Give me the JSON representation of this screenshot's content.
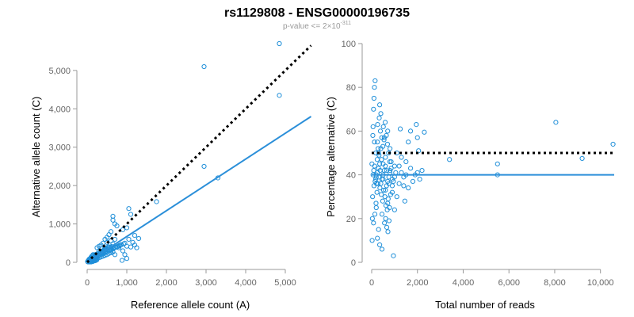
{
  "title": "rs1129808 - ENSG00000196735",
  "subtitle_prefix": "p-value <= 2",
  "subtitle_times": "×",
  "subtitle_base": "10",
  "subtitle_exp": "-311",
  "colors": {
    "points": "#1f8fd9",
    "fit": "#2b8fd9",
    "reference": "#000000"
  },
  "chart_data": [
    {
      "type": "scatter",
      "xlabel": "Reference allele count (A)",
      "ylabel": "Alternative allele count (C)",
      "xlim": [
        0,
        5600
      ],
      "ylim": [
        0,
        5700
      ],
      "xticks": [
        0,
        1000,
        2000,
        3000,
        4000,
        5000
      ],
      "xtick_labels": [
        "0",
        "1,000",
        "2,000",
        "3,000",
        "4,000",
        "5,000"
      ],
      "yticks": [
        0,
        1000,
        2000,
        3000,
        4000,
        5000
      ],
      "ytick_labels": [
        "0",
        "1,000",
        "2,000",
        "3,000",
        "4,000",
        "5,000"
      ],
      "fit_line": {
        "x0": 0,
        "y0": 0,
        "x1": 5650,
        "y1": 3800,
        "style": "solid"
      },
      "reference_line": {
        "x0": 0,
        "y0": 0,
        "x1": 5650,
        "y1": 5650,
        "style": "dotted"
      },
      "points": [
        [
          4850,
          5700
        ],
        [
          2950,
          5100
        ],
        [
          4850,
          4350
        ],
        [
          2950,
          2500
        ],
        [
          3300,
          2200
        ],
        [
          1050,
          1400
        ],
        [
          1100,
          1250
        ],
        [
          1750,
          1580
        ],
        [
          650,
          1200
        ],
        [
          650,
          1100
        ],
        [
          700,
          1000
        ],
        [
          750,
          950
        ],
        [
          600,
          800
        ],
        [
          550,
          720
        ],
        [
          900,
          850
        ],
        [
          1000,
          900
        ],
        [
          1200,
          700
        ],
        [
          1300,
          620
        ],
        [
          1150,
          520
        ],
        [
          1050,
          600
        ],
        [
          950,
          500
        ],
        [
          850,
          450
        ],
        [
          800,
          380
        ],
        [
          1000,
          420
        ],
        [
          900,
          300
        ],
        [
          700,
          600
        ],
        [
          500,
          650
        ],
        [
          450,
          600
        ],
        [
          400,
          500
        ],
        [
          350,
          450
        ],
        [
          300,
          420
        ],
        [
          250,
          380
        ],
        [
          500,
          520
        ],
        [
          600,
          560
        ],
        [
          650,
          480
        ],
        [
          1100,
          400
        ],
        [
          1200,
          450
        ],
        [
          1250,
          380
        ],
        [
          950,
          200
        ],
        [
          1000,
          100
        ],
        [
          880,
          50
        ],
        [
          700,
          200
        ],
        [
          600,
          300
        ],
        [
          550,
          400
        ],
        [
          450,
          380
        ],
        [
          400,
          300
        ],
        [
          350,
          250
        ],
        [
          300,
          300
        ],
        [
          250,
          220
        ],
        [
          200,
          200
        ],
        [
          150,
          180
        ],
        [
          120,
          120
        ],
        [
          100,
          100
        ],
        [
          80,
          60
        ],
        [
          60,
          40
        ],
        [
          50,
          80
        ],
        [
          40,
          30
        ],
        [
          30,
          50
        ],
        [
          20,
          10
        ],
        [
          10,
          20
        ],
        [
          200,
          100
        ],
        [
          250,
          150
        ],
        [
          300,
          180
        ],
        [
          350,
          200
        ],
        [
          400,
          220
        ],
        [
          450,
          250
        ],
        [
          500,
          280
        ],
        [
          550,
          300
        ],
        [
          600,
          330
        ],
        [
          650,
          350
        ],
        [
          700,
          380
        ],
        [
          750,
          400
        ],
        [
          800,
          420
        ],
        [
          200,
          60
        ],
        [
          150,
          40
        ],
        [
          100,
          30
        ],
        [
          250,
          90
        ],
        [
          300,
          120
        ],
        [
          350,
          140
        ],
        [
          400,
          160
        ],
        [
          450,
          180
        ],
        [
          500,
          200
        ],
        [
          550,
          230
        ],
        [
          600,
          250
        ],
        [
          650,
          270
        ],
        [
          180,
          140
        ],
        [
          220,
          160
        ],
        [
          260,
          190
        ],
        [
          320,
          230
        ],
        [
          380,
          270
        ],
        [
          420,
          310
        ],
        [
          480,
          330
        ],
        [
          520,
          360
        ],
        [
          580,
          390
        ],
        [
          620,
          410
        ],
        [
          140,
          90
        ],
        [
          170,
          110
        ],
        [
          210,
          130
        ],
        [
          240,
          170
        ],
        [
          270,
          200
        ],
        [
          330,
          260
        ],
        [
          370,
          290
        ],
        [
          430,
          340
        ],
        [
          470,
          360
        ],
        [
          530,
          400
        ],
        [
          90,
          50
        ],
        [
          110,
          70
        ],
        [
          130,
          80
        ],
        [
          160,
          100
        ],
        [
          190,
          120
        ],
        [
          230,
          140
        ],
        [
          280,
          160
        ],
        [
          310,
          190
        ],
        [
          360,
          210
        ],
        [
          410,
          240
        ],
        [
          460,
          260
        ],
        [
          510,
          290
        ],
        [
          560,
          320
        ],
        [
          610,
          340
        ],
        [
          660,
          370
        ],
        [
          710,
          390
        ],
        [
          760,
          410
        ],
        [
          810,
          440
        ],
        [
          860,
          460
        ],
        [
          920,
          480
        ],
        [
          70,
          90
        ],
        [
          90,
          120
        ],
        [
          110,
          150
        ],
        [
          130,
          170
        ],
        [
          150,
          200
        ],
        [
          60,
          10
        ],
        [
          80,
          20
        ],
        [
          100,
          10
        ],
        [
          120,
          30
        ],
        [
          140,
          20
        ],
        [
          160,
          50
        ],
        [
          180,
          70
        ],
        [
          200,
          40
        ],
        [
          220,
          80
        ],
        [
          240,
          60
        ]
      ]
    },
    {
      "type": "scatter",
      "xlabel": "Total number of reads",
      "ylabel": "Percentage alternative (C)",
      "xlim": [
        0,
        10600
      ],
      "ylim": [
        0,
        100
      ],
      "xticks": [
        0,
        2000,
        4000,
        6000,
        8000,
        10000
      ],
      "xtick_labels": [
        "0",
        "2,000",
        "4,000",
        "6,000",
        "8,000",
        "10,000"
      ],
      "yticks": [
        0,
        20,
        40,
        60,
        80,
        100
      ],
      "ytick_labels": [
        "0",
        "20",
        "40",
        "60",
        "80",
        "100"
      ],
      "fit_line": {
        "x0": 0,
        "y0": 40,
        "x1": 10600,
        "y1": 40,
        "style": "solid"
      },
      "reference_line": {
        "x0": 0,
        "y0": 50,
        "x1": 10600,
        "y1": 50,
        "style": "dotted"
      },
      "points": [
        [
          10550,
          54
        ],
        [
          8050,
          64
        ],
        [
          9200,
          47.5
        ],
        [
          5500,
          40
        ],
        [
          5500,
          45
        ],
        [
          3400,
          47
        ],
        [
          2300,
          59.5
        ],
        [
          2050,
          51
        ],
        [
          1950,
          63
        ],
        [
          2000,
          57
        ],
        [
          1700,
          60
        ],
        [
          1600,
          55
        ],
        [
          1500,
          40
        ],
        [
          1450,
          28
        ],
        [
          1400,
          35
        ],
        [
          1300,
          48
        ],
        [
          1200,
          44
        ],
        [
          1100,
          30
        ],
        [
          1000,
          24
        ],
        [
          950,
          3
        ],
        [
          900,
          38
        ],
        [
          850,
          46
        ],
        [
          800,
          52
        ],
        [
          750,
          36
        ],
        [
          700,
          60
        ],
        [
          650,
          42
        ],
        [
          600,
          33
        ],
        [
          550,
          57
        ],
        [
          500,
          45
        ],
        [
          450,
          22
        ],
        [
          400,
          68
        ],
        [
          350,
          72
        ],
        [
          300,
          15
        ],
        [
          250,
          55
        ],
        [
          200,
          40
        ],
        [
          150,
          83
        ],
        [
          120,
          80
        ],
        [
          100,
          75
        ],
        [
          80,
          70
        ],
        [
          60,
          62
        ],
        [
          50,
          58
        ],
        [
          40,
          30
        ],
        [
          30,
          20
        ],
        [
          20,
          10
        ],
        [
          10,
          45
        ],
        [
          250,
          11
        ],
        [
          350,
          8
        ],
        [
          450,
          6
        ],
        [
          200,
          25
        ],
        [
          300,
          50
        ],
        [
          400,
          52
        ],
        [
          500,
          38
        ],
        [
          600,
          48
        ],
        [
          700,
          27
        ],
        [
          800,
          42
        ],
        [
          900,
          32
        ],
        [
          1000,
          44
        ],
        [
          1100,
          50
        ],
        [
          1200,
          36
        ],
        [
          1300,
          41
        ],
        [
          1400,
          39
        ],
        [
          1500,
          46
        ],
        [
          1600,
          34
        ],
        [
          1700,
          43
        ],
        [
          1800,
          37
        ],
        [
          1900,
          40
        ],
        [
          2000,
          41
        ],
        [
          2100,
          38
        ],
        [
          2200,
          42
        ],
        [
          1250,
          61
        ],
        [
          100,
          35
        ],
        [
          150,
          37
        ],
        [
          200,
          39
        ],
        [
          250,
          41
        ],
        [
          300,
          43
        ],
        [
          350,
          45
        ],
        [
          400,
          36
        ],
        [
          450,
          38
        ],
        [
          500,
          40
        ],
        [
          550,
          42
        ],
        [
          600,
          44
        ],
        [
          650,
          35
        ],
        [
          700,
          37
        ],
        [
          750,
          39
        ],
        [
          800,
          41
        ],
        [
          850,
          43
        ],
        [
          900,
          35
        ],
        [
          950,
          37
        ],
        [
          1000,
          39
        ],
        [
          1050,
          41
        ],
        [
          120,
          55
        ],
        [
          180,
          50
        ],
        [
          240,
          47
        ],
        [
          280,
          52
        ],
        [
          320,
          49
        ],
        [
          360,
          34
        ],
        [
          420,
          31
        ],
        [
          480,
          28
        ],
        [
          520,
          33
        ],
        [
          580,
          30
        ],
        [
          620,
          26
        ],
        [
          680,
          24
        ],
        [
          720,
          29
        ],
        [
          780,
          25
        ],
        [
          830,
          31
        ],
        [
          80,
          18
        ],
        [
          140,
          22
        ],
        [
          190,
          27
        ],
        [
          230,
          32
        ],
        [
          270,
          36
        ],
        [
          310,
          39
        ],
        [
          370,
          42
        ],
        [
          430,
          47
        ],
        [
          490,
          53
        ],
        [
          540,
          56
        ],
        [
          590,
          64
        ],
        [
          640,
          58
        ],
        [
          690,
          54
        ],
        [
          740,
          50
        ],
        [
          790,
          46
        ],
        [
          60,
          40
        ],
        [
          90,
          42
        ],
        [
          130,
          44
        ],
        [
          170,
          38
        ],
        [
          210,
          36
        ],
        [
          260,
          63
        ],
        [
          330,
          66
        ],
        [
          380,
          60
        ],
        [
          440,
          57
        ],
        [
          510,
          62
        ],
        [
          560,
          18
        ],
        [
          610,
          20
        ],
        [
          660,
          16
        ],
        [
          710,
          14
        ],
        [
          760,
          19
        ]
      ]
    }
  ]
}
